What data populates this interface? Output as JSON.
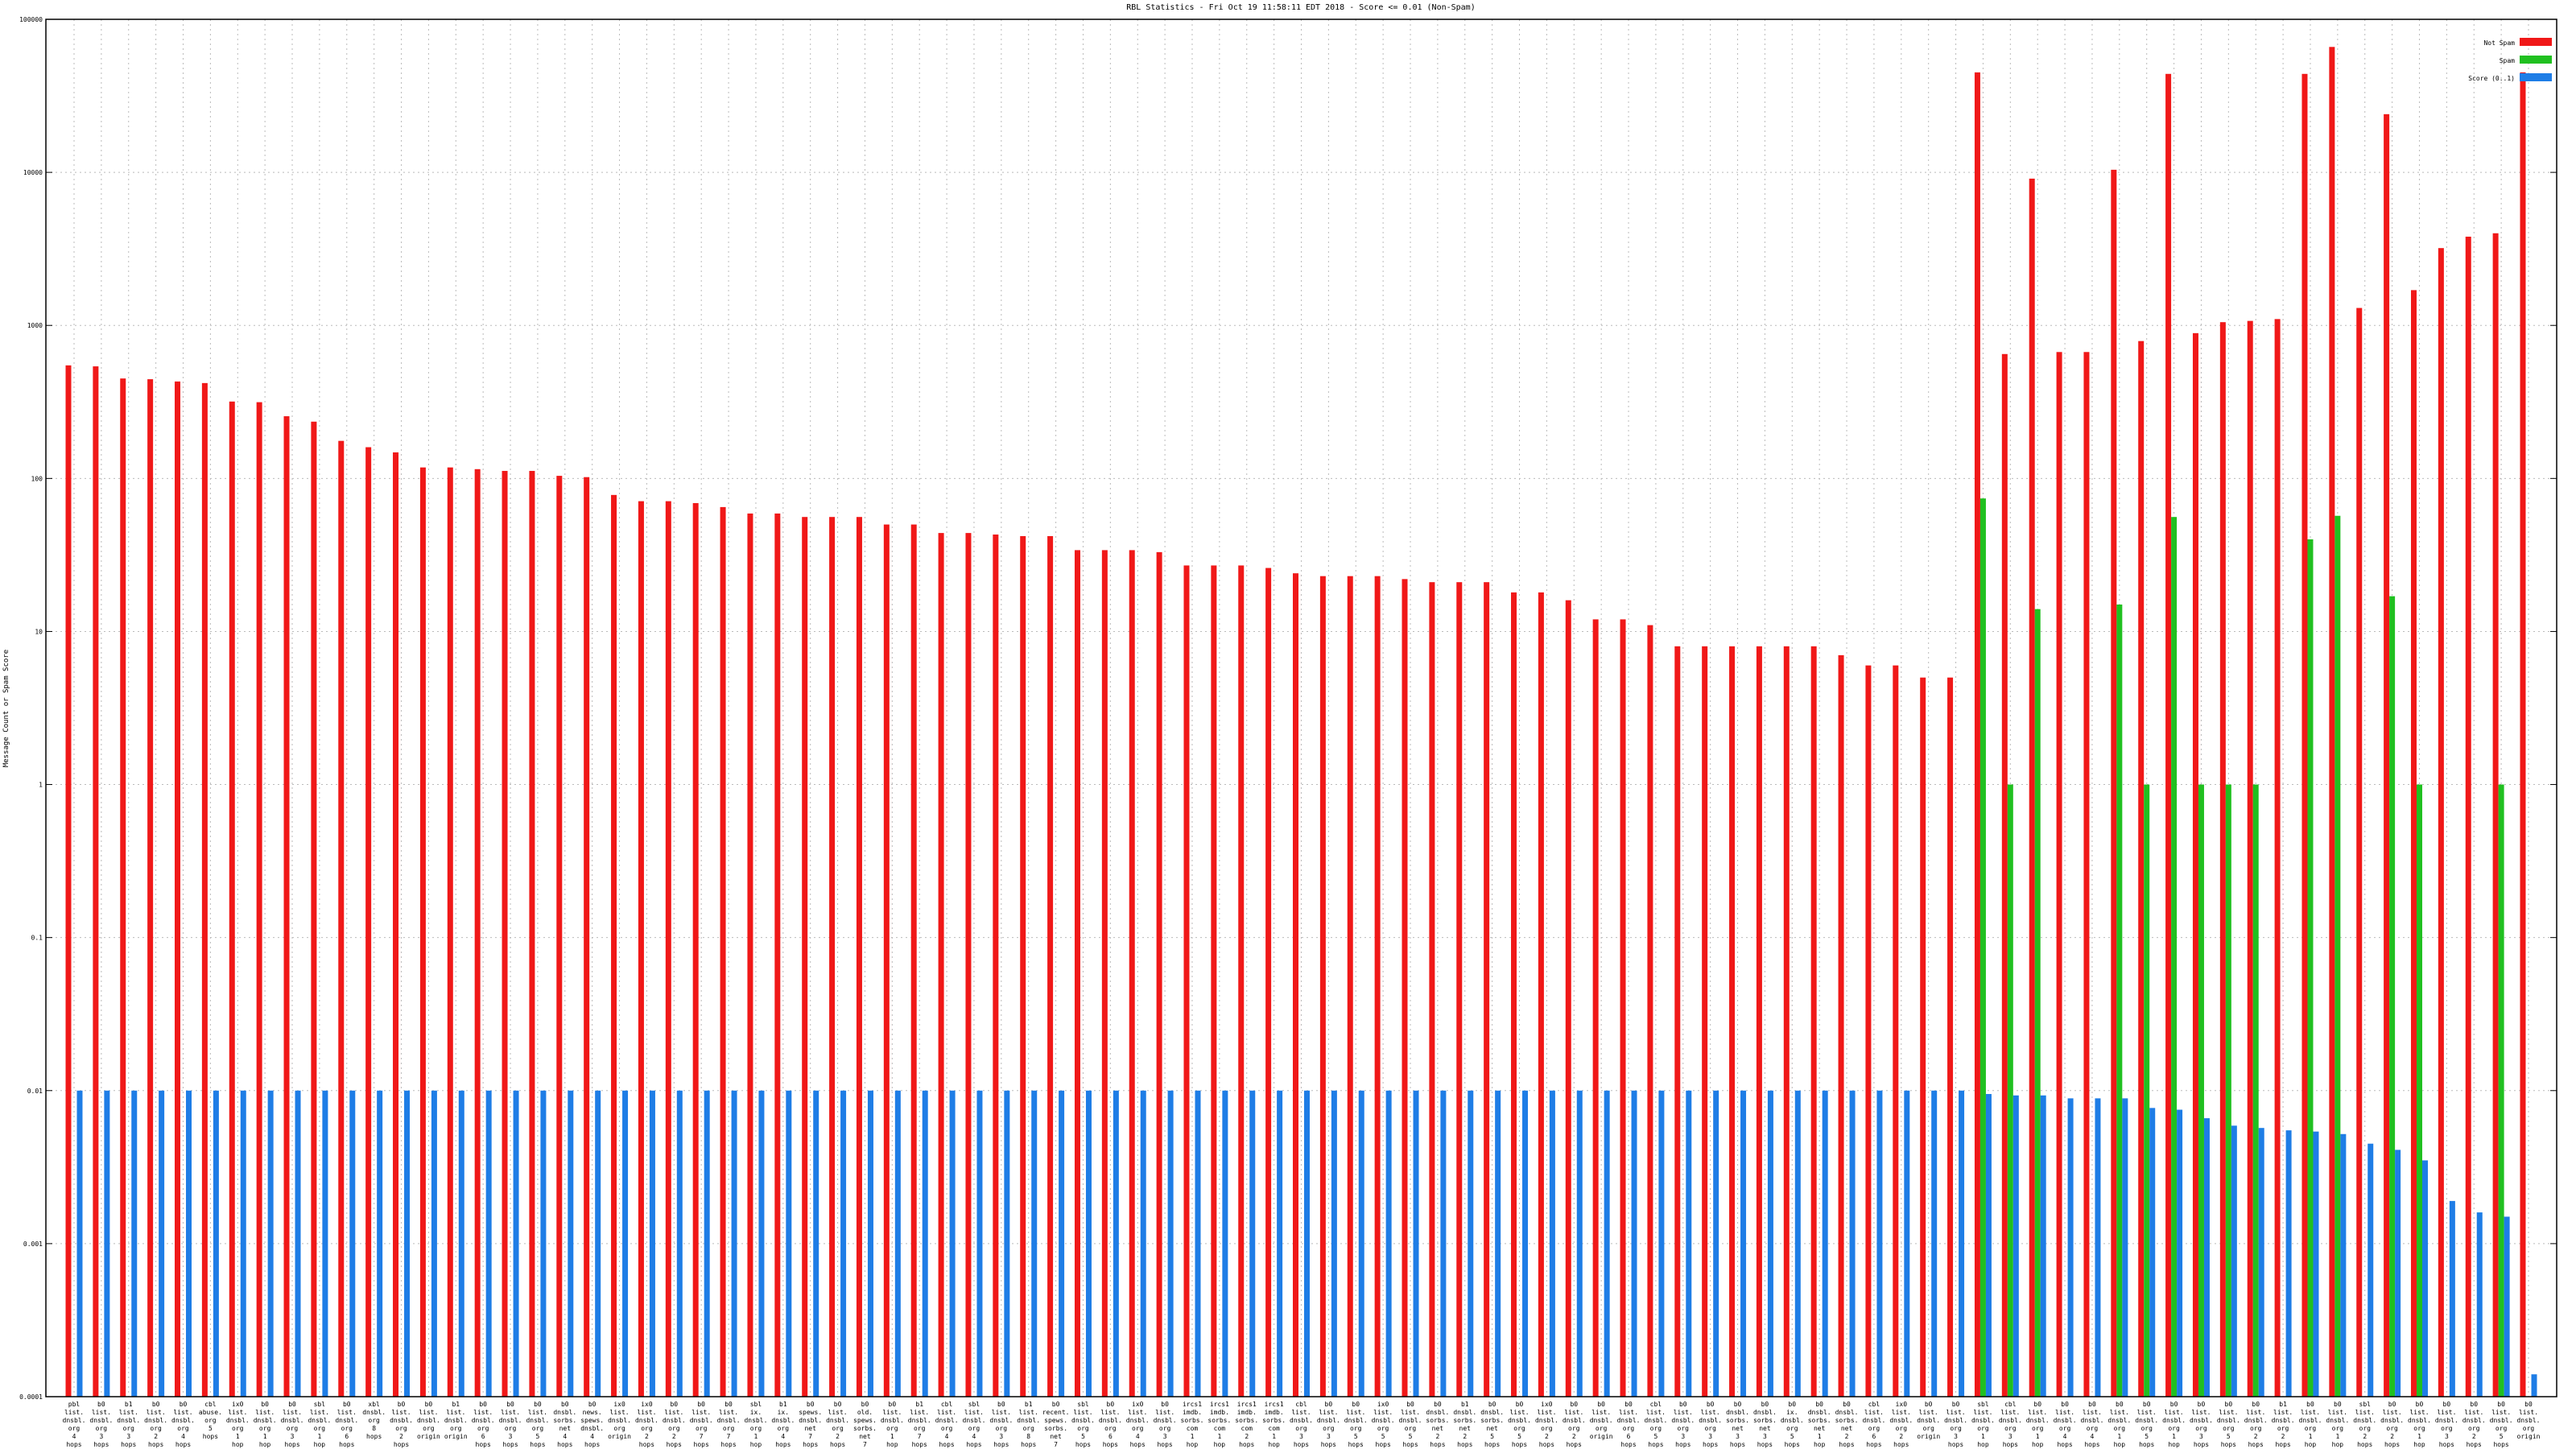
{
  "chart_data": {
    "type": "bar",
    "title": "RBL Statistics - Fri Oct 19 11:58:11 EDT 2018 - Score <= 0.01 (Non-Spam)",
    "y_label": "Message Count or Spam Score",
    "log_scale": true,
    "grid": true,
    "legend": "upper right",
    "ylim": [
      0.0001,
      100000
    ],
    "yticks": [
      0.0001,
      0.001,
      0.01,
      0.1,
      1,
      10,
      100,
      1000,
      10000,
      100000
    ],
    "categories": [
      "pbl list. dnsbl. org 4 hops",
      "b0 list. dnsbl. org 3 hops",
      "b1 list. dnsbl. org 3 hops",
      "b0 list. dnsbl. org 2 hops",
      "b0 list. dnsbl. org 4 hops",
      "cbl abuse. org 5 hops",
      "ix0 list. dnsbl. org 1 hop",
      "b0 list. dnsbl. org 1 hop",
      "b0 list. dnsbl. org 3 hops",
      "sbl list. dnsbl. org 1 hop",
      "b0 list. dnsbl. org 6 hops",
      "xbl dnsbl. org 8 hops",
      "b0 list. dnsbl. org 2 hops",
      "b0 list. dnsbl. org origin",
      "b1 list. dnsbl. org origin",
      "b0 list. dnsbl. org 6 hops",
      "b0 list. dnsbl. org 3 hops",
      "b0 list. dnsbl. org 5 hops",
      "b0 dnsbl. sorbs. net 4 hops",
      "b0 news. spews. dnsbl. 4 hops",
      "ix0 list. dnsbl. org origin",
      "ix0 list. dnsbl. org 2 hops",
      "b0 list. dnsbl. org 2 hops",
      "b0 list. dnsbl. org 7 hops",
      "b0 list. dnsbl. org 7 hops",
      "sbl ix. dnsbl. org 1 hop",
      "b1 ix. dnsbl. org 4 hops",
      "b0 spews. dnsbl. net 7 hops",
      "b0 list. dnsbl. org 2 hops",
      "b0 old. spews. sorbs. net 7 hops",
      "b0 list. dnsbl. org 1 hop",
      "b1 list. dnsbl. org 7 hops",
      "cbl list. dnsbl. org 4 hops",
      "sbl list. dnsbl. org 4 hops",
      "b0 list. dnsbl. org 3 hops",
      "b1 list. dnsbl. org 8 hops",
      "b0 recent. spews. sorbs. net 7 hops",
      "sbl list. dnsbl. org 5 hops",
      "b0 list. dnsbl. org 6 hops",
      "ix0 list. dnsbl. org 4 hops",
      "b0 list. dnsbl. org 3 hops",
      "ircs1 imdb. sorbs. com 1 hop",
      "ircs1 imdb. sorbs. com 1 hop",
      "ircs1 imdb. sorbs. com 2 hops",
      "ircs1 imdb. sorbs. com 1 hop",
      "cbl list. dnsbl. org 3 hops",
      "b0 list. dnsbl. org 3 hops",
      "b0 list. dnsbl. org 5 hops",
      "ix0 list. dnsbl. org 5 hops",
      "b0 list. dnsbl. org 5 hops",
      "b0 dnsbl. sorbs. net 2 hops",
      "b1 dnsbl. sorbs. net 2 hops",
      "b0 dnsbl. sorbs. net 5 hops",
      "b0 list. dnsbl. org 5 hops",
      "ix0 list. dnsbl. org 2 hops",
      "b0 list. dnsbl. org 2 hops",
      "b0 list. dnsbl. org origin",
      "b0 list. dnsbl. org 6 hops",
      "cbl list. dnsbl. org 5 hops",
      "b0 list. dnsbl. org 3 hops",
      "b0 list. dnsbl. org 3 hops",
      "b0 dnsbl. sorbs. net 3 hops",
      "b0 dnsbl. sorbs. net 3 hops",
      "b0 ix. dnsbl. org 5 hops",
      "b0 dnsbl. sorbs. net 1 hop",
      "b0 dnsbl. sorbs. net 2 hops",
      "cbl list. dnsbl. org 6 hops",
      "ix0 list. dnsbl. org 2 hops",
      "b0 list. dnsbl. org origin",
      "b0 list. dnsbl. org 3 hops",
      "sbl list. dnsbl. org 1 hop",
      "cbl list. dnsbl. org 3 hops",
      "b0 list. dnsbl. org 1 hop",
      "b0 list. dnsbl. org 4 hops",
      "b0 list. dnsbl. org 4 hops",
      "b0 list. dnsbl. org 1 hop",
      "b0 list. dnsbl. org 5 hops",
      "b0 list. dnsbl. org 1 hop",
      "b0 list. dnsbl. org 3 hops",
      "b0 list. dnsbl. org 5 hops",
      "b0 list. dnsbl. org 2 hops",
      "b1 list. dnsbl. org 2 hops",
      "b0 list. dnsbl. org 1 hop",
      "b0 list. dnsbl. org 1 hop",
      "sbl list. dnsbl. org 2 hops",
      "b0 list. dnsbl. org 2 hops",
      "b0 list. dnsbl. org 1 hop",
      "b0 list. dnsbl. org 3 hops",
      "b0 list. dnsbl. org 2 hops",
      "b0 list. dnsbl. org 5 hops",
      "b0 list. dnsbl. org origin"
    ],
    "series": [
      {
        "name": "Not Spam",
        "color": "#f01818",
        "values": [
          548,
          540,
          450,
          445,
          430,
          420,
          318,
          315,
          255,
          235,
          176,
          160,
          148,
          118,
          118,
          115,
          112,
          112,
          104,
          102,
          78,
          71,
          71,
          69,
          65,
          59,
          59,
          56,
          56,
          56,
          50,
          50,
          44,
          44,
          43,
          42,
          42,
          34,
          34,
          34,
          33,
          27,
          27,
          27,
          26,
          24,
          23,
          23,
          23,
          22,
          21,
          21,
          21,
          18,
          18,
          16,
          12,
          12,
          11,
          8,
          8,
          8,
          8,
          8,
          8,
          7,
          6,
          6,
          5,
          5,
          45000,
          650,
          9100,
          670,
          670,
          10400,
          790,
          44000,
          890,
          1050,
          1070,
          1100,
          44000,
          66000,
          1300,
          24000,
          1700,
          3200,
          3800,
          4000,
          45000
        ]
      },
      {
        "name": "Spam",
        "color": "#20c020",
        "values": [
          null,
          null,
          null,
          null,
          null,
          null,
          null,
          null,
          null,
          null,
          null,
          null,
          null,
          null,
          null,
          null,
          null,
          null,
          null,
          null,
          null,
          null,
          null,
          null,
          null,
          null,
          null,
          null,
          null,
          null,
          null,
          null,
          null,
          null,
          null,
          null,
          null,
          null,
          null,
          null,
          null,
          null,
          null,
          null,
          null,
          null,
          null,
          null,
          null,
          null,
          null,
          null,
          null,
          null,
          null,
          null,
          null,
          null,
          null,
          null,
          null,
          null,
          null,
          null,
          null,
          null,
          null,
          null,
          null,
          null,
          74,
          1,
          14,
          null,
          null,
          15,
          1,
          56,
          1,
          1,
          1,
          null,
          40,
          57,
          null,
          17,
          1,
          null,
          null,
          1,
          null
        ]
      },
      {
        "name": "Score (0..1)",
        "color": "#1e7de6",
        "values": [
          0.01,
          0.01,
          0.01,
          0.01,
          0.01,
          0.01,
          0.01,
          0.01,
          0.01,
          0.01,
          0.01,
          0.01,
          0.01,
          0.01,
          0.01,
          0.01,
          0.01,
          0.01,
          0.01,
          0.01,
          0.01,
          0.01,
          0.01,
          0.01,
          0.01,
          0.01,
          0.01,
          0.01,
          0.01,
          0.01,
          0.01,
          0.01,
          0.01,
          0.01,
          0.01,
          0.01,
          0.01,
          0.01,
          0.01,
          0.01,
          0.01,
          0.01,
          0.01,
          0.01,
          0.01,
          0.01,
          0.01,
          0.01,
          0.01,
          0.01,
          0.01,
          0.01,
          0.01,
          0.01,
          0.01,
          0.01,
          0.01,
          0.01,
          0.01,
          0.01,
          0.01,
          0.01,
          0.01,
          0.01,
          0.01,
          0.01,
          0.01,
          0.01,
          0.01,
          0.01,
          0.0095,
          0.0093,
          0.0093,
          0.0089,
          0.0089,
          0.0089,
          0.0077,
          0.0075,
          0.0066,
          0.0059,
          0.0057,
          0.0055,
          0.0054,
          0.0052,
          0.0045,
          0.0041,
          0.0035,
          0.0019,
          0.0016,
          0.0015,
          0.00014
        ]
      }
    ]
  }
}
